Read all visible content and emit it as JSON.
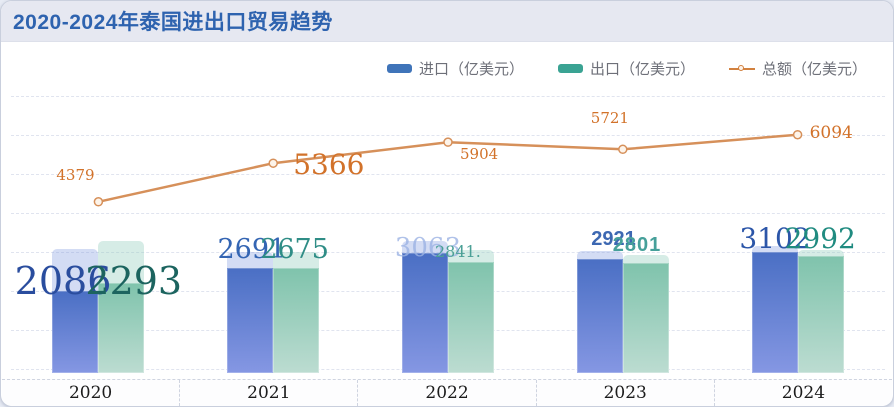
{
  "title": "2020-2024年泰国进出口贸易趋势",
  "legend": {
    "items": [
      {
        "label": "进口（亿美元）",
        "marker": "bar",
        "color": "#3f74b9"
      },
      {
        "label": "出口（亿美元）",
        "marker": "bar",
        "color": "#3aa393"
      },
      {
        "label": "总额（亿美元）",
        "marker": "line",
        "color": "#d2813f"
      }
    ]
  },
  "chart_data": {
    "type": "bar",
    "subtype": "grouped bars with overlay line (combo chart)",
    "title": "2020-2024年泰国进出口贸易趋势",
    "categories": [
      "2020",
      "2021",
      "2022",
      "2023",
      "2024"
    ],
    "series": [
      {
        "name": "进口（亿美元）",
        "type": "bar",
        "color": "#4a6fc4",
        "values": [
          2086,
          2691,
          3063,
          2921,
          3102
        ],
        "labels": [
          "2086",
          "2691",
          "3063",
          "2921",
          "3102"
        ]
      },
      {
        "name": "出口（亿美元）",
        "type": "bar",
        "color": "#7fc3ac",
        "values": [
          2293,
          2675,
          2841,
          2801,
          2992
        ],
        "labels": [
          "2293",
          "2675",
          "2841.",
          "2801",
          "2992"
        ]
      },
      {
        "name": "总额（亿美元）",
        "type": "line",
        "color": "#d6905a",
        "values": [
          4379,
          5366,
          5904,
          5721,
          6094
        ],
        "labels": [
          "4379",
          "5366",
          "5904",
          "5721",
          "6094"
        ]
      }
    ],
    "xlabel": "",
    "ylabel": "",
    "ylim": [
      0,
      7000
    ],
    "grid": "horizontal dashed lines, ~1000 per division",
    "legend_position": "top-right"
  }
}
